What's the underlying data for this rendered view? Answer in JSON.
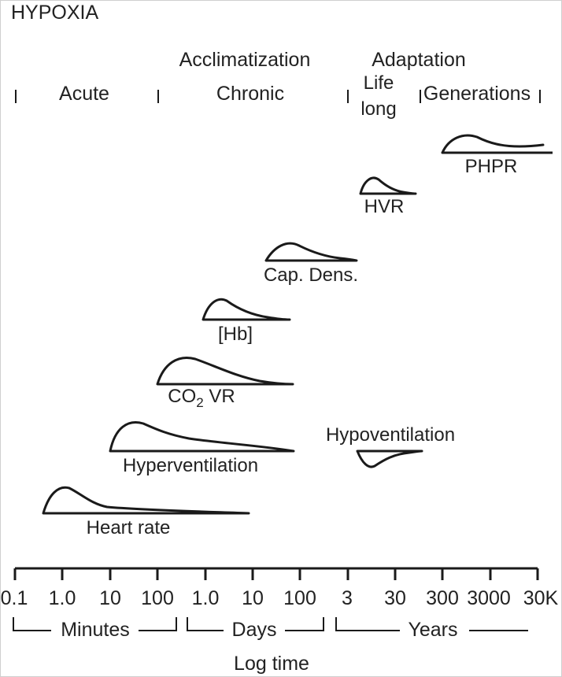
{
  "title": "HYPOXIA",
  "headers": {
    "acclimatization": "Acclimatization",
    "adaptation": "Adaptation",
    "acute": "Acute",
    "chronic": "Chronic",
    "life": "Life",
    "long": "long",
    "generations": "Generations"
  },
  "responses": [
    {
      "id": "phpr",
      "label": "PHPR"
    },
    {
      "id": "hvr",
      "label": "HVR"
    },
    {
      "id": "cap-dens",
      "label": "Cap. Dens."
    },
    {
      "id": "hb",
      "label": "[Hb]"
    },
    {
      "id": "co2vr",
      "label_main": "CO",
      "label_sub": "2",
      "label_rest": " VR"
    },
    {
      "id": "hyperventilation",
      "label": "Hyperventilation"
    },
    {
      "id": "hypoventilation",
      "label": "Hypoventilation"
    },
    {
      "id": "heart-rate",
      "label": "Heart rate"
    }
  ],
  "axis": {
    "ticks": [
      "0.1",
      "1.0",
      "10",
      "100",
      "1.0",
      "10",
      "100",
      "3",
      "30",
      "300",
      "3000",
      "30K"
    ],
    "units": {
      "minutes": "Minutes",
      "days": "Days",
      "years": "Years"
    },
    "label": "Log time"
  }
}
